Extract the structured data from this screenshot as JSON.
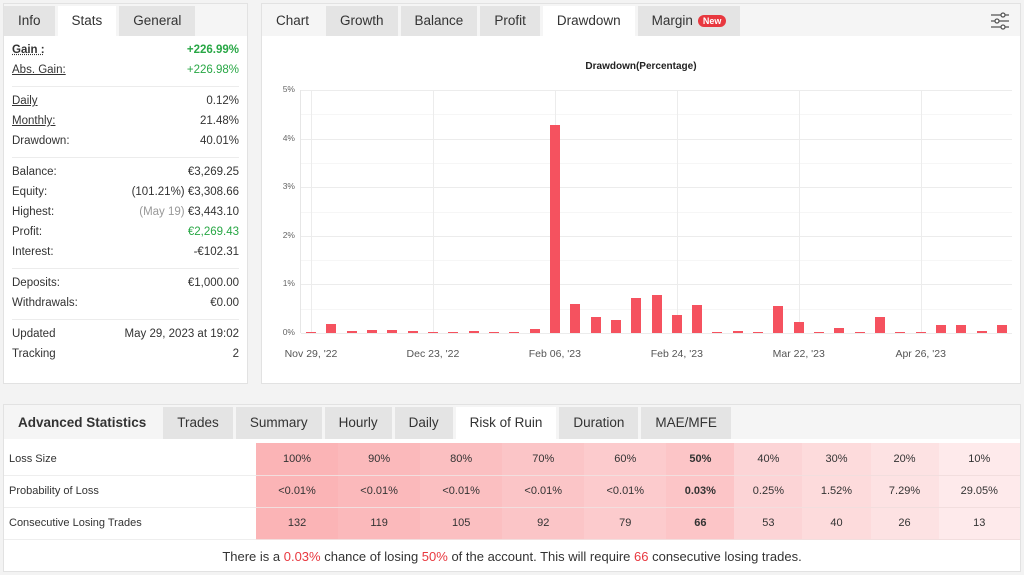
{
  "stats_panel": {
    "tabs": [
      {
        "label": "Info",
        "active": false
      },
      {
        "label": "Stats",
        "active": true
      },
      {
        "label": "General",
        "active": false
      }
    ],
    "groups": [
      [
        {
          "label": "Gain :",
          "value": "+226.99%",
          "style": "gain"
        },
        {
          "label": "Abs. Gain:",
          "value": "+226.98%",
          "style": "absgain"
        }
      ],
      [
        {
          "label": "Daily",
          "value": "0.12%"
        },
        {
          "label": "Monthly:",
          "value": "21.48%"
        },
        {
          "label": "Drawdown:",
          "value": "40.01%"
        }
      ],
      [
        {
          "label": "Balance:",
          "value": "€3,269.25"
        },
        {
          "label": "Equity:",
          "prefix": "(101.21%)",
          "value": "€3,308.66"
        },
        {
          "label": "Highest:",
          "prefix": "(May 19)",
          "value": "€3,443.10"
        },
        {
          "label": "Profit:",
          "value": "€2,269.43",
          "style": "green"
        },
        {
          "label": "Interest:",
          "value": "-€102.31"
        }
      ],
      [
        {
          "label": "Deposits:",
          "value": "€1,000.00"
        },
        {
          "label": "Withdrawals:",
          "value": "€0.00"
        }
      ],
      [
        {
          "label": "Updated",
          "value": "May 29, 2023 at 19:02"
        },
        {
          "label": "Tracking",
          "value": "2"
        }
      ]
    ]
  },
  "chart_panel": {
    "tabs": [
      {
        "label": "Chart",
        "active": false,
        "plain": true
      },
      {
        "label": "Growth",
        "active": false
      },
      {
        "label": "Balance",
        "active": false
      },
      {
        "label": "Profit",
        "active": false
      },
      {
        "label": "Drawdown",
        "active": true
      },
      {
        "label": "Margin",
        "active": false,
        "badge": "New"
      }
    ],
    "settings_icon": "sliders-icon",
    "bar_color": "#f5525f"
  },
  "chart_data": {
    "type": "bar",
    "title": "Drawdown(Percentage)",
    "xlabel": "",
    "ylabel": "",
    "ylim": [
      0,
      5
    ],
    "y_ticks": [
      "0%",
      "1%",
      "2%",
      "3%",
      "4%",
      "5%"
    ],
    "x_tick_labels": [
      "Nov 29, '22",
      "Dec 23, '22",
      "Feb 06, '23",
      "Feb 24, '23",
      "Mar 22, '23",
      "Apr 26, '23"
    ],
    "grid": true,
    "legend": null,
    "values": [
      0.02,
      0.18,
      0.05,
      0.07,
      0.07,
      0.05,
      0.03,
      0.03,
      0.05,
      0.03,
      0.03,
      0.09,
      4.28,
      0.6,
      0.33,
      0.27,
      0.72,
      0.78,
      0.37,
      0.58,
      0.03,
      0.05,
      0.03,
      0.56,
      0.23,
      0.03,
      0.1,
      0.03,
      0.33,
      0.03,
      0.03,
      0.17,
      0.17,
      0.05,
      0.17
    ]
  },
  "advanced_panel": {
    "tabs": [
      {
        "label": "Advanced Statistics",
        "active": true,
        "plain": true
      },
      {
        "label": "Trades",
        "active": false
      },
      {
        "label": "Summary",
        "active": false
      },
      {
        "label": "Hourly",
        "active": false
      },
      {
        "label": "Daily",
        "active": false
      },
      {
        "label": "Risk of Ruin",
        "active": true
      },
      {
        "label": "Duration",
        "active": false
      },
      {
        "label": "MAE/MFE",
        "active": false
      }
    ],
    "risk_of_ruin": {
      "rows": [
        {
          "label": "Loss Size",
          "values": [
            "100%",
            "90%",
            "80%",
            "70%",
            "60%",
            "50%",
            "40%",
            "30%",
            "20%",
            "10%"
          ]
        },
        {
          "label": "Probability of Loss",
          "values": [
            "<0.01%",
            "<0.01%",
            "<0.01%",
            "<0.01%",
            "<0.01%",
            "0.03%",
            "0.25%",
            "1.52%",
            "7.29%",
            "29.05%"
          ]
        },
        {
          "label": "Consecutive Losing Trades",
          "values": [
            "132",
            "119",
            "105",
            "92",
            "79",
            "66",
            "53",
            "40",
            "26",
            "13"
          ]
        }
      ],
      "highlight_index": 5,
      "cell_colors": [
        "#fbb4b6",
        "#fbb9bb",
        "#fbbfc1",
        "#fbc5c7",
        "#fccbcd",
        "#fcc5c7",
        "#fcd4d6",
        "#fddbdc",
        "#fde2e3",
        "#feeaeb"
      ],
      "summary": {
        "part1": "There is a ",
        "chance": "0.03%",
        "part2": " chance of losing ",
        "loss": "50%",
        "part3": " of the account. This will require ",
        "trades": "66",
        "part4": " consecutive losing trades."
      }
    }
  }
}
